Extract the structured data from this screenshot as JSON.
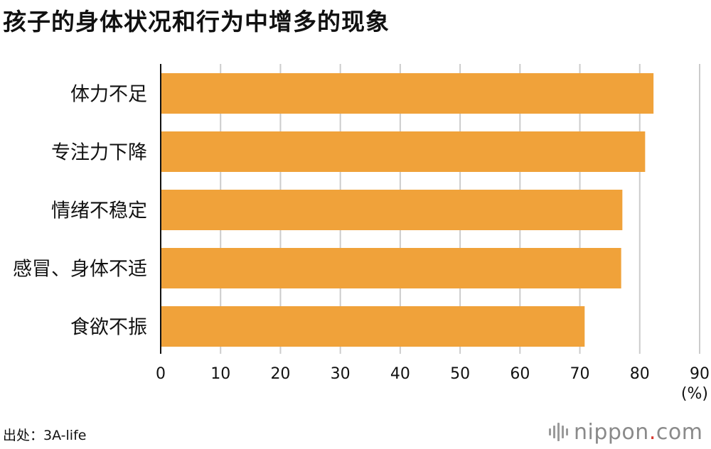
{
  "title": "孩子的身体状况和行为中增多的现象",
  "source": "出处：3A-life",
  "logo": {
    "word": "nippon",
    "dot": ".",
    "suffix": "com"
  },
  "colors": {
    "bar": "#f0a23a",
    "grid": "#cccccc",
    "axis": "#111111",
    "logo_text": "#8a8a8a",
    "logo_dot": "#d8382e"
  },
  "chart_data": {
    "type": "bar",
    "orientation": "horizontal",
    "categories": [
      "体力不足",
      "专注力下降",
      "情绪不稳定",
      "感冒、身体不适",
      "食欲不振"
    ],
    "values": [
      82.3,
      80.9,
      77.1,
      76.9,
      70.8
    ],
    "xlim": [
      0,
      90
    ],
    "xticks": [
      0,
      10,
      20,
      30,
      40,
      50,
      60,
      70,
      80,
      90
    ],
    "unit_label": "(%)",
    "grid": true
  }
}
